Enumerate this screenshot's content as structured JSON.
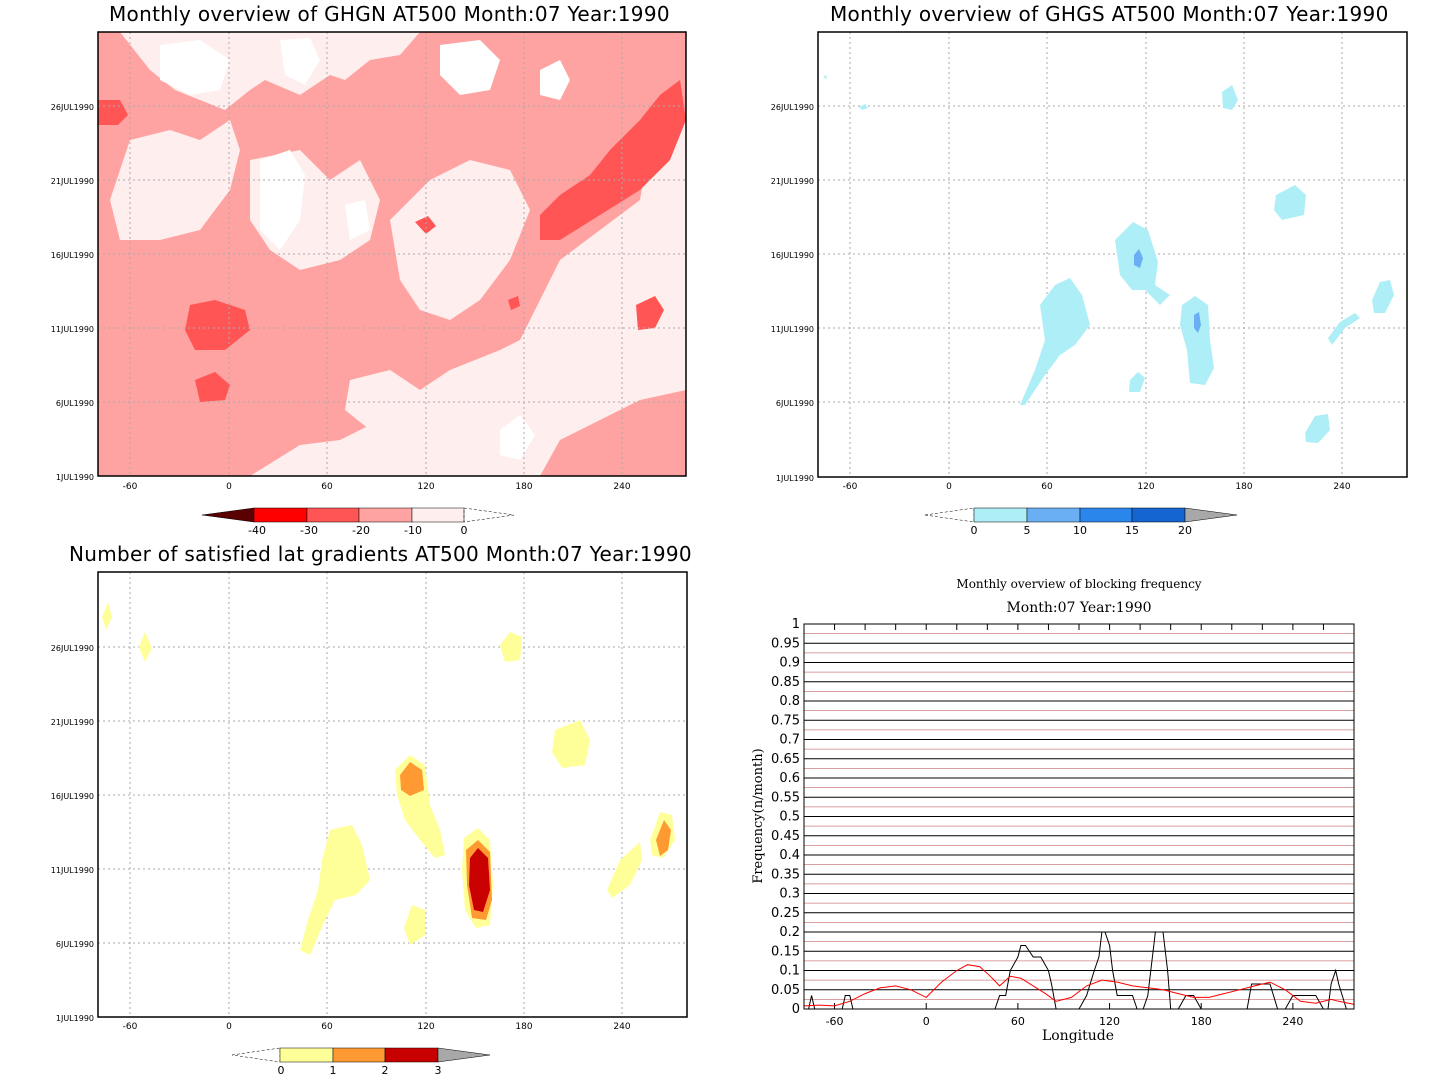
{
  "colors": {
    "red_1": "#ffeeee",
    "red_2": "#ffa2a2",
    "red_3": "#ff5555",
    "red_4": "#ff0000",
    "red_5": "#5a0000",
    "blue_1": "#aeeef6",
    "blue_2": "#6aaff4",
    "blue_3": "#2b86ec",
    "blue_4": "#1565d0",
    "yel_1": "#ffff9a",
    "yel_2": "#ff9a32",
    "yel_3": "#c80000",
    "grey": "#a8a8a8"
  },
  "panels": {
    "ghgn": {
      "title": "Monthly overview of GHGN AT500 Month:07 Year:1990",
      "x_ticks": [
        "-60",
        "0",
        "60",
        "120",
        "180",
        "240"
      ],
      "y_ticks": [
        "1JUL1990",
        "6JUL1990",
        "11JUL1990",
        "16JUL1990",
        "21JUL1990",
        "26JUL1990"
      ],
      "colorbar_labels": [
        "-40",
        "-30",
        "-20",
        "-10",
        "0"
      ]
    },
    "ghgs": {
      "title": "Monthly overview of GHGS AT500 Month:07 Year:1990",
      "x_ticks": [
        "-60",
        "0",
        "60",
        "120",
        "180",
        "240"
      ],
      "y_ticks": [
        "1JUL1990",
        "6JUL1990",
        "11JUL1990",
        "16JUL1990",
        "21JUL1990",
        "26JUL1990"
      ],
      "colorbar_labels": [
        "0",
        "5",
        "10",
        "15",
        "20"
      ]
    },
    "nsat": {
      "title": "Number of satisfied lat gradients AT500 Month:07 Year:1990",
      "x_ticks": [
        "-60",
        "0",
        "60",
        "120",
        "180",
        "240"
      ],
      "y_ticks": [
        "1JUL1990",
        "6JUL1990",
        "11JUL1990",
        "16JUL1990",
        "21JUL1990",
        "26JUL1990"
      ],
      "colorbar_labels": [
        "0",
        "1",
        "2",
        "3"
      ]
    },
    "freq": {
      "title": "Monthly overview of blocking frequency",
      "subtitle": "Month:07 Year:1990",
      "xlabel": "Longitude",
      "ylabel": "Frequency(n/month)"
    }
  },
  "chart_data": {
    "type": "line",
    "title": "Monthly overview of blocking frequency",
    "subtitle": "Month:07 Year:1990",
    "xlabel": "Longitude",
    "ylabel": "Frequency(n/month)",
    "xlim": [
      -80,
      280
    ],
    "ylim": [
      0,
      1
    ],
    "x_ticks": [
      -60,
      0,
      60,
      120,
      180,
      240
    ],
    "y_ticks": [
      0,
      0.05,
      0.1,
      0.15,
      0.2,
      0.25,
      0.3,
      0.35,
      0.4,
      0.45,
      0.5,
      0.55,
      0.6,
      0.65,
      0.7,
      0.75,
      0.8,
      0.85,
      0.9,
      0.95,
      1
    ],
    "series": [
      {
        "color": "#000000",
        "x": [
          -80,
          -77,
          -75,
          -73,
          -70,
          -55,
          -53,
          -50,
          -48,
          -40,
          -20,
          0,
          20,
          40,
          45,
          48,
          52,
          55,
          60,
          62,
          65,
          70,
          75,
          80,
          82,
          85,
          90,
          100,
          105,
          110,
          113,
          115,
          117,
          120,
          122,
          125,
          130,
          135,
          138,
          140,
          142,
          145,
          150,
          152,
          155,
          158,
          160,
          165,
          170,
          175,
          180,
          182,
          185,
          190,
          195,
          200,
          205,
          210,
          213,
          215,
          220,
          225,
          230,
          235,
          240,
          245,
          250,
          255,
          260,
          263,
          265,
          268,
          270,
          275,
          280
        ],
        "y": [
          0,
          0,
          0.035,
          0,
          0,
          0,
          0.035,
          0.035,
          0,
          0,
          0,
          0,
          0,
          0,
          0,
          0.035,
          0.035,
          0.1,
          0.135,
          0.165,
          0.165,
          0.135,
          0.135,
          0.1,
          0.065,
          0,
          0,
          0,
          0.035,
          0.1,
          0.135,
          0.2,
          0.2,
          0.165,
          0.1,
          0.035,
          0.035,
          0.035,
          0,
          0,
          0,
          0.035,
          0.2,
          0.2,
          0.2,
          0.1,
          0,
          0,
          0.035,
          0.035,
          0,
          0,
          0,
          0,
          0,
          0,
          0,
          0,
          0.065,
          0.065,
          0.065,
          0.065,
          0,
          0,
          0.035,
          0.035,
          0.035,
          0.035,
          0,
          0,
          0.065,
          0.1,
          0.065,
          0,
          0
        ]
      },
      {
        "color": "#ff0000",
        "x": [
          -80,
          -70,
          -60,
          -50,
          -40,
          -30,
          -20,
          -10,
          0,
          10,
          20,
          27,
          35,
          42,
          48,
          55,
          62,
          70,
          78,
          85,
          95,
          105,
          115,
          125,
          135,
          145,
          155,
          165,
          175,
          185,
          195,
          205,
          215,
          225,
          235,
          245,
          255,
          265,
          270,
          280
        ],
        "y": [
          0.008,
          0.01,
          0.008,
          0.02,
          0.04,
          0.055,
          0.06,
          0.05,
          0.03,
          0.07,
          0.1,
          0.115,
          0.11,
          0.085,
          0.06,
          0.085,
          0.08,
          0.06,
          0.04,
          0.02,
          0.03,
          0.06,
          0.075,
          0.07,
          0.06,
          0.055,
          0.05,
          0.04,
          0.03,
          0.03,
          0.04,
          0.05,
          0.06,
          0.07,
          0.05,
          0.02,
          0.015,
          0.025,
          0.02,
          0.012
        ]
      }
    ]
  }
}
